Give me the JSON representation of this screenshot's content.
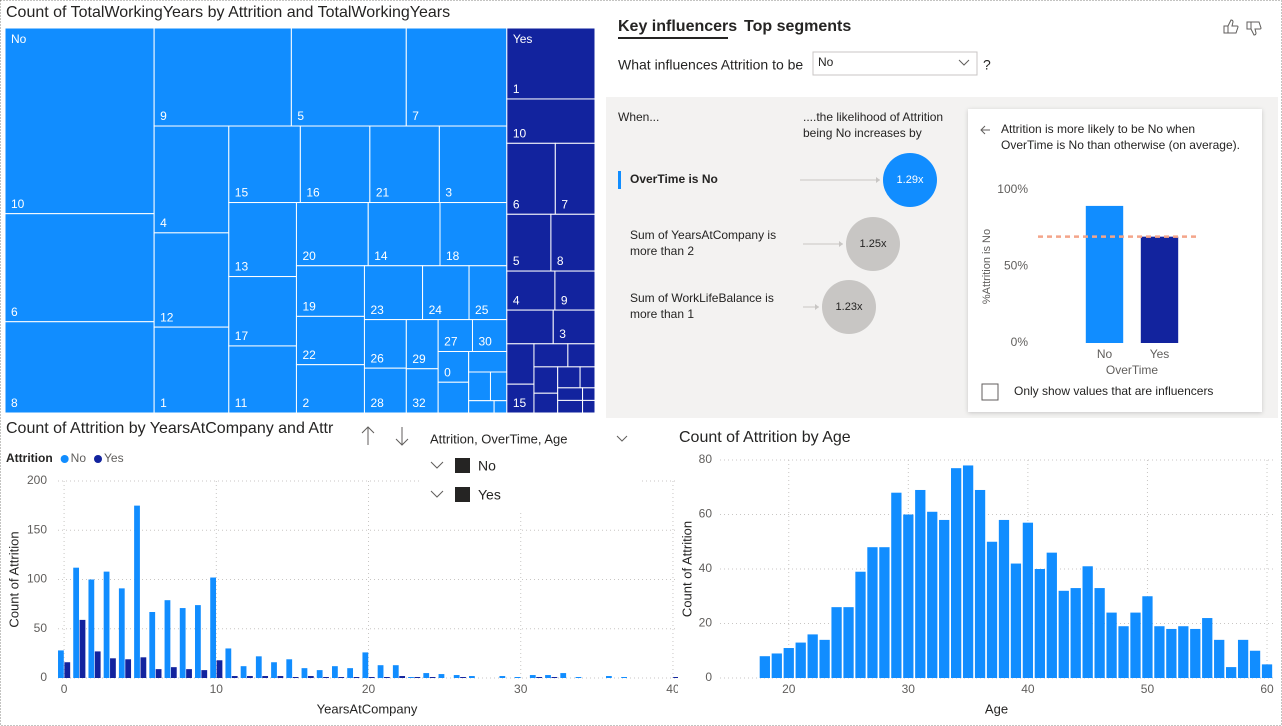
{
  "chart_data": [
    {
      "type": "treemap",
      "title": "Count of TotalWorkingYears by Attrition and TotalWorkingYears",
      "series": [
        {
          "name": "No",
          "color": "#118dff",
          "categories": [
            "10",
            "6",
            "8",
            "9",
            "5",
            "7",
            "4",
            "12",
            "1",
            "15",
            "16",
            "21",
            "3",
            "13",
            "17",
            "11",
            "20",
            "14",
            "18",
            "19",
            "22",
            "2",
            "23",
            "24",
            "25",
            "26",
            "28",
            "29",
            "32",
            "27",
            "30",
            "0",
            null,
            null,
            null,
            null,
            null,
            null
          ],
          "values": [
            177,
            103,
            87,
            86,
            72,
            63,
            51,
            45,
            41,
            35,
            34,
            34,
            33,
            32,
            30,
            29,
            29,
            29,
            27,
            22,
            21,
            21,
            20,
            16,
            13,
            13,
            12,
            10,
            9,
            7,
            7,
            6,
            6,
            5,
            4,
            3,
            2,
            1
          ]
        },
        {
          "name": "Yes",
          "color": "#12239e",
          "categories": [
            "1",
            "10",
            "6",
            "7",
            "5",
            "8",
            "4",
            "9",
            null,
            "3",
            null,
            "15",
            null,
            null,
            null,
            null,
            null,
            null,
            null,
            null,
            null,
            null
          ],
          "values": [
            40,
            25,
            22,
            18,
            16,
            16,
            12,
            10,
            10,
            9,
            7,
            5,
            5,
            4,
            4,
            3,
            3,
            2,
            2,
            2,
            1,
            1
          ]
        }
      ]
    },
    {
      "type": "bar",
      "title": "Count of Attrition by YearsAtCompany and Attr",
      "legend_title": "Attrition",
      "x": [
        0,
        1,
        2,
        3,
        4,
        5,
        6,
        7,
        8,
        9,
        10,
        11,
        12,
        13,
        14,
        15,
        16,
        17,
        18,
        19,
        20,
        21,
        22,
        23,
        24,
        25,
        26,
        27,
        29,
        30,
        31,
        32,
        33,
        34,
        36,
        37,
        40
      ],
      "series": [
        {
          "name": "No",
          "color": "#118dff",
          "values": [
            28,
            112,
            100,
            108,
            91,
            175,
            67,
            79,
            71,
            74,
            102,
            30,
            12,
            22,
            16,
            19,
            10,
            8,
            12,
            10,
            26,
            13,
            13,
            1,
            5,
            4,
            3,
            2,
            2,
            1,
            3,
            3,
            5,
            1,
            2,
            1,
            0
          ]
        },
        {
          "name": "Yes",
          "color": "#12239e",
          "values": [
            16,
            59,
            27,
            20,
            19,
            21,
            9,
            11,
            9,
            8,
            18,
            2,
            2,
            2,
            2,
            1,
            2,
            1,
            1,
            1,
            1,
            1,
            2,
            1,
            1,
            0,
            1,
            0,
            0,
            0,
            1,
            1,
            0,
            0,
            0,
            0,
            1
          ]
        }
      ],
      "xlim": [
        -0.4,
        40.2
      ],
      "xticks": [
        0,
        10,
        20,
        30,
        40
      ],
      "ylim": [
        0,
        200
      ],
      "yticks": [
        0,
        50,
        100,
        150,
        200
      ],
      "xlabel": "YearsAtCompany",
      "ylabel": "Count of Attrition",
      "grid": true
    },
    {
      "type": "bar",
      "title": "Count of Attrition by Age",
      "x": [
        18,
        19,
        20,
        21,
        22,
        23,
        24,
        25,
        26,
        27,
        28,
        29,
        30,
        31,
        32,
        33,
        34,
        35,
        36,
        37,
        38,
        39,
        40,
        41,
        42,
        43,
        44,
        45,
        46,
        47,
        48,
        49,
        50,
        51,
        52,
        53,
        54,
        55,
        56,
        57,
        58,
        59,
        60
      ],
      "values": [
        8,
        9,
        11,
        13,
        16,
        14,
        26,
        26,
        39,
        48,
        48,
        68,
        60,
        69,
        61,
        58,
        77,
        78,
        69,
        50,
        58,
        42,
        57,
        40,
        46,
        32,
        33,
        41,
        33,
        24,
        19,
        24,
        30,
        19,
        18,
        19,
        18,
        22,
        14,
        4,
        14,
        10,
        5
      ],
      "color": "#118dff",
      "xlim": [
        14.25,
        60.5
      ],
      "xticks": [
        20,
        30,
        40,
        50,
        60
      ],
      "ylim": [
        0,
        80
      ],
      "yticks": [
        0,
        20,
        40,
        60,
        80
      ],
      "xlabel": "Age",
      "ylabel": "Count of Attrition",
      "grid": true
    },
    {
      "type": "bar",
      "title": [
        "Attrition is more likely to be No when",
        "OverTime is No than otherwise (on average)."
      ],
      "categories": [
        "No",
        "Yes"
      ],
      "values": [
        89.6,
        69.5
      ],
      "colors": [
        "#118dff",
        "#12239e"
      ],
      "ylim": [
        0,
        100
      ],
      "yticks": [
        {
          "value": 0,
          "label": "0%"
        },
        {
          "value": 50,
          "label": "50%"
        },
        {
          "value": 100,
          "label": "100%"
        }
      ],
      "xlabel": "OverTime",
      "ylabel": "%Attrition is No",
      "reference_line": 69.5,
      "reference_color": "#f4a58a",
      "grid": false
    }
  ],
  "key_influencers": {
    "tabs": [
      "Key influencers",
      "Top segments"
    ],
    "question": "What influences Attrition to be",
    "selected": "No",
    "help": "?",
    "when_header": "When...",
    "likelihood_header": [
      "....the likelihood of Attrition",
      "being No increases by"
    ],
    "influencers": [
      {
        "label": [
          "OverTime is No"
        ],
        "factor": "1.29x"
      },
      {
        "label": [
          "Sum of YearsAtCompany is",
          "more than 2"
        ],
        "factor": "1.25x"
      },
      {
        "label": [
          "Sum of WorkLifeBalance is",
          "more than 1"
        ],
        "factor": "1.23x"
      }
    ],
    "checkbox": "Only show values that are influencers"
  },
  "slicer": {
    "title": "Attrition, OverTime, Age",
    "items": [
      "No",
      "Yes"
    ]
  }
}
